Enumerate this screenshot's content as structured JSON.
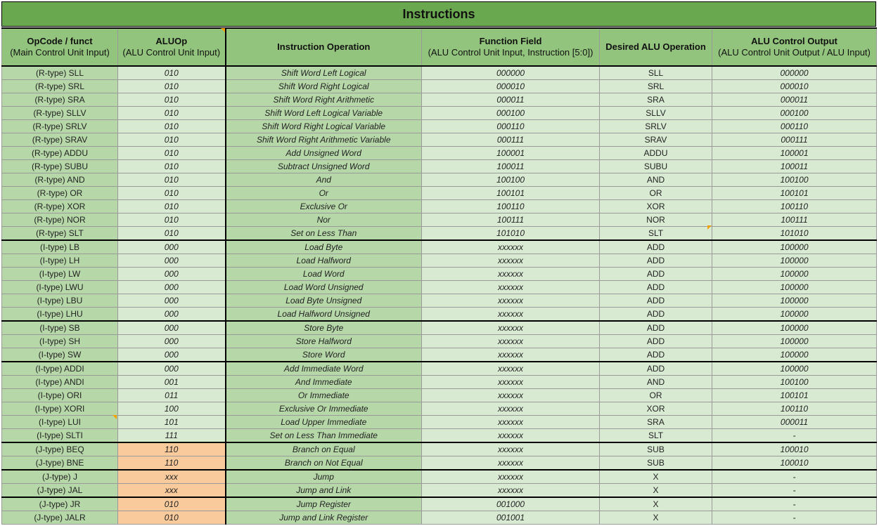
{
  "title": "Instructions",
  "headers": [
    {
      "main": "OpCode / funct",
      "sub": "(Main Control Unit Input)"
    },
    {
      "main": "ALUOp",
      "sub": "(ALU Control Unit Input)"
    },
    {
      "main": "Instruction Operation",
      "sub": ""
    },
    {
      "main": "Function Field",
      "sub": "(ALU Control Unit Input, Instruction [5:0])"
    },
    {
      "main": "Desired ALU Operation",
      "sub": ""
    },
    {
      "main": "ALU Control Output",
      "sub": "(ALU Control Unit Output / ALU Input)"
    }
  ],
  "rows": [
    {
      "op": "(R-type) SLL",
      "aluop": "010",
      "instr": "Shift Word Left Logical",
      "func": "000000",
      "desired": "SLL",
      "out": "000000"
    },
    {
      "op": "(R-type) SRL",
      "aluop": "010",
      "instr": "Shift Word Right Logical",
      "func": "000010",
      "desired": "SRL",
      "out": "000010"
    },
    {
      "op": "(R-type) SRA",
      "aluop": "010",
      "instr": "Shift Word Right Arithmetic",
      "func": "000011",
      "desired": "SRA",
      "out": "000011"
    },
    {
      "op": "(R-type) SLLV",
      "aluop": "010",
      "instr": "Shift Word Left Logical Variable",
      "func": "000100",
      "desired": "SLLV",
      "out": "000100"
    },
    {
      "op": "(R-type) SRLV",
      "aluop": "010",
      "instr": "Shift Word Right Logical Variable",
      "func": "000110",
      "desired": "SRLV",
      "out": "000110"
    },
    {
      "op": "(R-type) SRAV",
      "aluop": "010",
      "instr": "Shift Word Right Arithmetic Variable",
      "func": "000111",
      "desired": "SRAV",
      "out": "000111"
    },
    {
      "op": "(R-type) ADDU",
      "aluop": "010",
      "instr": "Add Unsigned Word",
      "func": "100001",
      "desired": "ADDU",
      "out": "100001"
    },
    {
      "op": "(R-type) SUBU",
      "aluop": "010",
      "instr": "Subtract Unsigned Word",
      "func": "100011",
      "desired": "SUBU",
      "out": "100011"
    },
    {
      "op": "(R-type) AND",
      "aluop": "010",
      "instr": "And",
      "func": "100100",
      "desired": "AND",
      "out": "100100"
    },
    {
      "op": "(R-type) OR",
      "aluop": "010",
      "instr": "Or",
      "func": "100101",
      "desired": "OR",
      "out": "100101"
    },
    {
      "op": "(R-type) XOR",
      "aluop": "010",
      "instr": "Exclusive Or",
      "func": "100110",
      "desired": "XOR",
      "out": "100110"
    },
    {
      "op": "(R-type) NOR",
      "aluop": "010",
      "instr": "Nor",
      "func": "100111",
      "desired": "NOR",
      "out": "100111"
    },
    {
      "op": "(R-type) SLT",
      "aluop": "010",
      "instr": "Set on Less Than",
      "func": "101010",
      "desired": "SLT",
      "out": "101010"
    },
    {
      "op": "(I-type) LB",
      "aluop": "000",
      "instr": "Load Byte",
      "func": "xxxxxx",
      "desired": "ADD",
      "out": "100000"
    },
    {
      "op": "(I-type) LH",
      "aluop": "000",
      "instr": "Load Halfword",
      "func": "xxxxxx",
      "desired": "ADD",
      "out": "100000"
    },
    {
      "op": "(I-type) LW",
      "aluop": "000",
      "instr": "Load Word",
      "func": "xxxxxx",
      "desired": "ADD",
      "out": "100000"
    },
    {
      "op": "(I-type) LWU",
      "aluop": "000",
      "instr": "Load Word Unsigned",
      "func": "xxxxxx",
      "desired": "ADD",
      "out": "100000"
    },
    {
      "op": "(I-type) LBU",
      "aluop": "000",
      "instr": "Load Byte Unsigned",
      "func": "xxxxxx",
      "desired": "ADD",
      "out": "100000"
    },
    {
      "op": "(I-type) LHU",
      "aluop": "000",
      "instr": "Load Halfword Unsigned",
      "func": "xxxxxx",
      "desired": "ADD",
      "out": "100000"
    },
    {
      "op": "(I-type) SB",
      "aluop": "000",
      "instr": "Store Byte",
      "func": "xxxxxx",
      "desired": "ADD",
      "out": "100000"
    },
    {
      "op": "(I-type) SH",
      "aluop": "000",
      "instr": "Store Halfword",
      "func": "xxxxxx",
      "desired": "ADD",
      "out": "100000"
    },
    {
      "op": "(I-type) SW",
      "aluop": "000",
      "instr": "Store Word",
      "func": "xxxxxx",
      "desired": "ADD",
      "out": "100000"
    },
    {
      "op": "(I-type) ADDI",
      "aluop": "000",
      "instr": "Add Immediate Word",
      "func": "xxxxxx",
      "desired": "ADD",
      "out": "100000"
    },
    {
      "op": "(I-type) ANDI",
      "aluop": "001",
      "instr": "And Immediate",
      "func": "xxxxxx",
      "desired": "AND",
      "out": "100100"
    },
    {
      "op": "(I-type) ORI",
      "aluop": "011",
      "instr": "Or Immediate",
      "func": "xxxxxx",
      "desired": "OR",
      "out": "100101"
    },
    {
      "op": "(I-type) XORI",
      "aluop": "100",
      "instr": "Exclusive Or Immediate",
      "func": "xxxxxx",
      "desired": "XOR",
      "out": "100110"
    },
    {
      "op": "(I-type) LUI",
      "aluop": "101",
      "instr": "Load Upper Immediate",
      "func": "xxxxxx",
      "desired": "SRA",
      "out": "000011"
    },
    {
      "op": "(I-type) SLTI",
      "aluop": "111",
      "instr": "Set on Less Than Immediate",
      "func": "xxxxxx",
      "desired": "SLT",
      "out": "-"
    },
    {
      "op": "(J-type) BEQ",
      "aluop": "110",
      "instr": "Branch on Equal",
      "func": "xxxxxx",
      "desired": "SUB",
      "out": "100010"
    },
    {
      "op": "(J-type) BNE",
      "aluop": "110",
      "instr": "Branch on Not Equal",
      "func": "xxxxxx",
      "desired": "SUB",
      "out": "100010"
    },
    {
      "op": "(J-type) J",
      "aluop": "xxx",
      "instr": "Jump",
      "func": "xxxxxx",
      "desired": "X",
      "out": "-"
    },
    {
      "op": "(J-type) JAL",
      "aluop": "xxx",
      "instr": "Jump and Link",
      "func": "xxxxxx",
      "desired": "X",
      "out": "-"
    },
    {
      "op": "(J-type) JR",
      "aluop": "010",
      "instr": "Jump Register",
      "func": "001000",
      "desired": "X",
      "out": "-"
    },
    {
      "op": "(J-type) JALR",
      "aluop": "010",
      "instr": "Jump and Link Register",
      "func": "001001",
      "desired": "X",
      "out": "-"
    }
  ],
  "group_start_rows": [
    13,
    19,
    22,
    28,
    30,
    32
  ],
  "highlight_aluop_rows": [
    28,
    29,
    30,
    31,
    32,
    33
  ],
  "colors": {
    "title_bg": "#6aa84f",
    "header_bg": "#93c47d",
    "dark_cell": "#b6d7a8",
    "light_cell": "#d9ead3",
    "highlight": "#f9cb9c",
    "note_marker": "#f1a000"
  }
}
